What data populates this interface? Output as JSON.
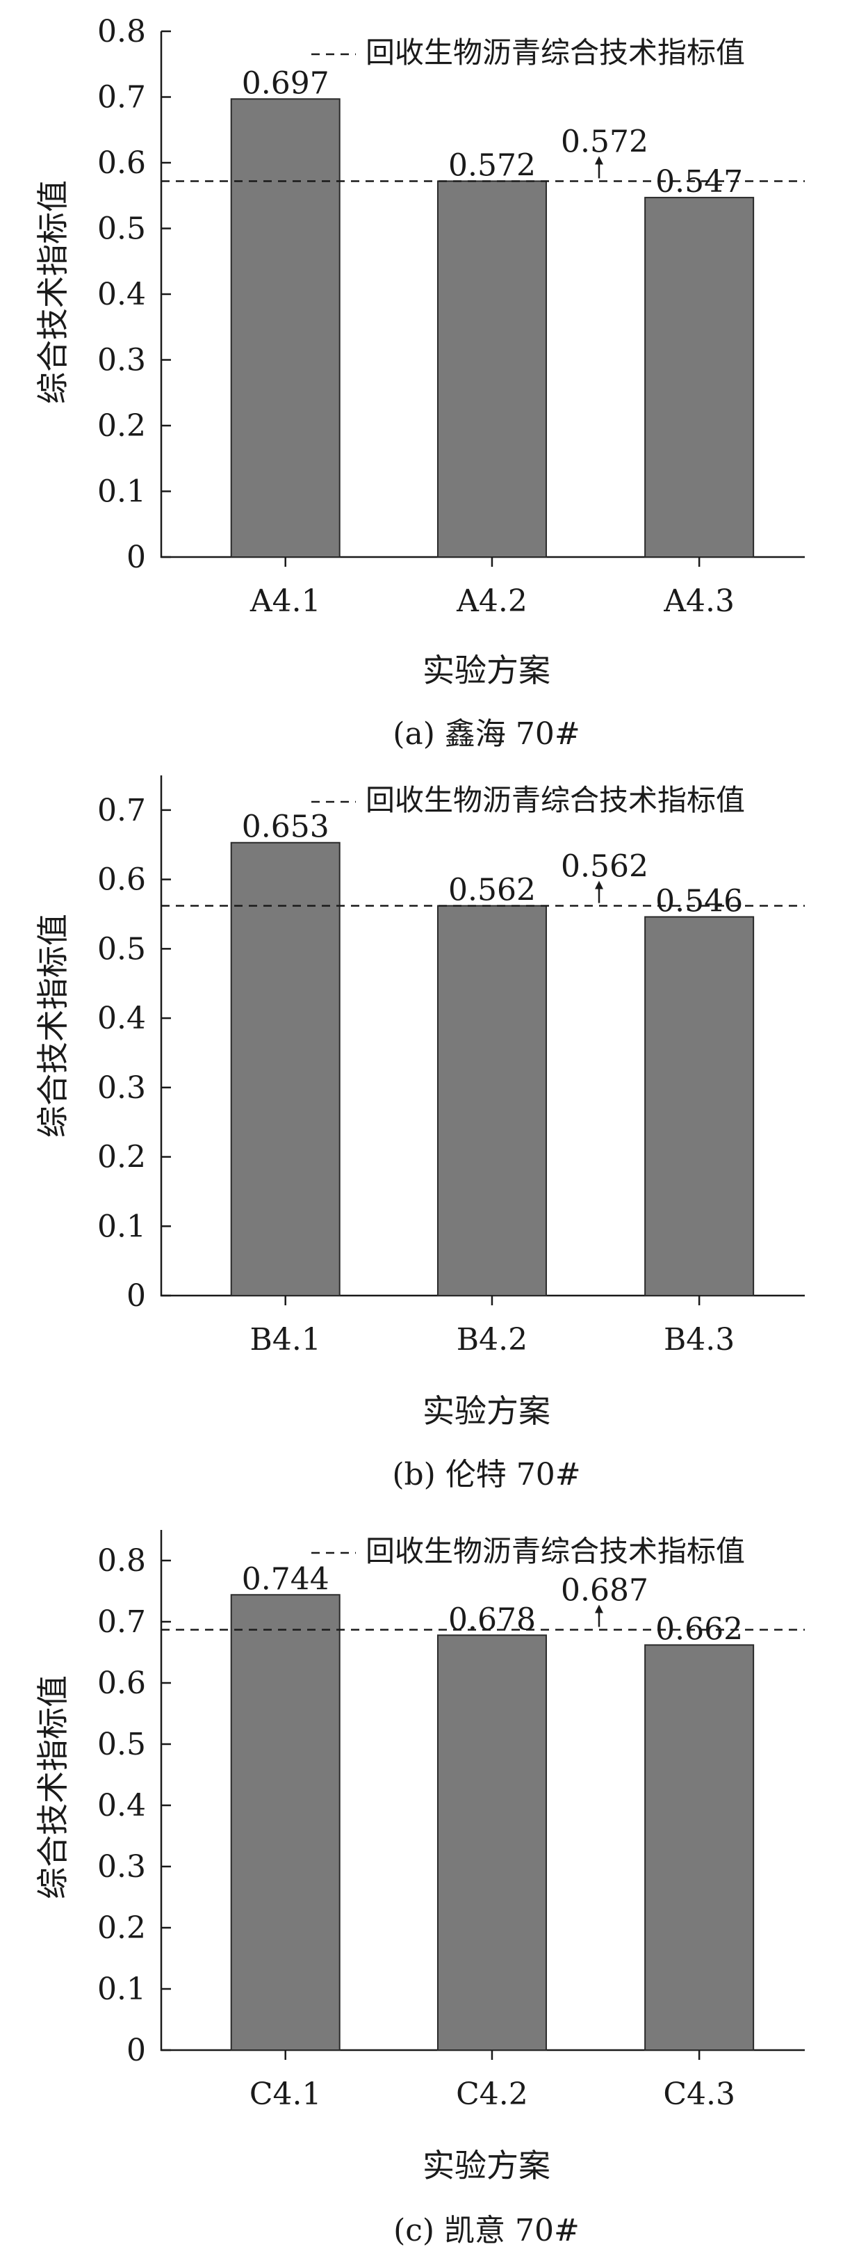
{
  "chart_data": [
    {
      "type": "bar",
      "caption": "(a) 鑫海 70#",
      "categories": [
        "A4.1",
        "A4.2",
        "A4.3"
      ],
      "values": [
        0.697,
        0.572,
        0.547
      ],
      "value_labels": [
        "0.697",
        "0.572",
        "0.547"
      ],
      "ylabel": "综合技术指标值",
      "xlabel": "实验方案",
      "ylim": [
        0,
        0.8
      ],
      "yticks": [
        0,
        0.1,
        0.2,
        0.3,
        0.4,
        0.5,
        0.6,
        0.7,
        0.8
      ],
      "ytick_labels": [
        "0",
        "0.1",
        "0.2",
        "0.3",
        "0.4",
        "0.5",
        "0.6",
        "0.7",
        "0.8"
      ],
      "reference": {
        "value": 0.572,
        "label": "0.572",
        "legend": "回收生物沥青综合技术指标值"
      },
      "legend_position": "top-right",
      "bar_color": "#7a7a7a",
      "grid": false
    },
    {
      "type": "bar",
      "caption": "(b) 伦特 70#",
      "categories": [
        "B4.1",
        "B4.2",
        "B4.3"
      ],
      "values": [
        0.653,
        0.562,
        0.546
      ],
      "value_labels": [
        "0.653",
        "0.562",
        "0.546"
      ],
      "ylabel": "综合技术指标值",
      "xlabel": "实验方案",
      "ylim": [
        0,
        0.75
      ],
      "yticks": [
        0,
        0.1,
        0.2,
        0.3,
        0.4,
        0.5,
        0.6,
        0.7
      ],
      "ytick_labels": [
        "0",
        "0.1",
        "0.2",
        "0.3",
        "0.4",
        "0.5",
        "0.6",
        "0.7"
      ],
      "reference": {
        "value": 0.562,
        "label": "0.562",
        "legend": "回收生物沥青综合技术指标值"
      },
      "legend_position": "top-right",
      "bar_color": "#7a7a7a",
      "grid": false
    },
    {
      "type": "bar",
      "caption": "(c) 凯意 70#",
      "categories": [
        "C4.1",
        "C4.2",
        "C4.3"
      ],
      "values": [
        0.744,
        0.678,
        0.662
      ],
      "value_labels": [
        "0.744",
        "0.678",
        "0.662"
      ],
      "ylabel": "综合技术指标值",
      "xlabel": "实验方案",
      "ylim": [
        0,
        0.85
      ],
      "yticks": [
        0,
        0.1,
        0.2,
        0.3,
        0.4,
        0.5,
        0.6,
        0.7,
        0.8
      ],
      "ytick_labels": [
        "0",
        "0.1",
        "0.2",
        "0.3",
        "0.4",
        "0.5",
        "0.6",
        "0.7",
        "0.8"
      ],
      "reference": {
        "value": 0.687,
        "label": "0.687",
        "legend": "回收生物沥青综合技术指标值"
      },
      "legend_position": "top-right",
      "bar_color": "#7a7a7a",
      "grid": false
    }
  ]
}
